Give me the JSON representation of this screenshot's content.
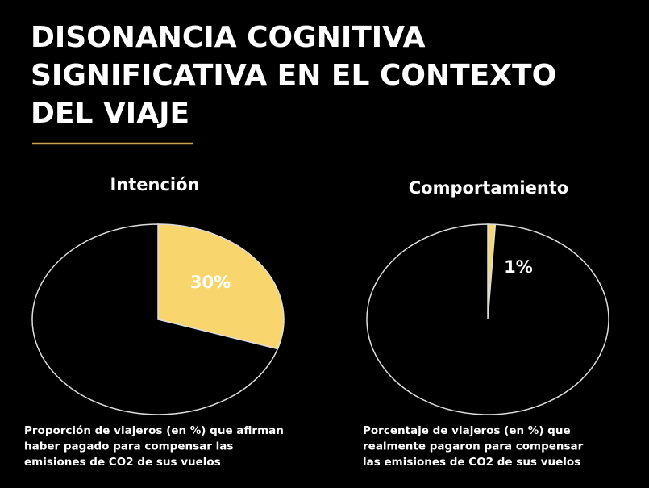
{
  "title_lines": [
    "DISONANCIA COGNITIVA",
    "SIGNIFICATIVA EN EL CONTEXTO",
    "DEL VIAJE"
  ],
  "chart_data": [
    {
      "type": "pie",
      "title": "Intención",
      "categories": [
        null,
        null
      ],
      "values": [
        30,
        70
      ],
      "value_labels": [
        "30%",
        null
      ],
      "colors": [
        "#f9d56e",
        "#000000"
      ],
      "caption_lines": [
        "Proporción de viajeros (en %) que afirman",
        "haber pagado para compensar las",
        "emisiones de CO2 de sus vuelos"
      ]
    },
    {
      "type": "pie",
      "title": "Comportamiento",
      "categories": [
        null,
        null
      ],
      "values": [
        1,
        99
      ],
      "value_labels": [
        "1%",
        null
      ],
      "colors": [
        "#f9d56e",
        "#000000"
      ],
      "caption_lines": [
        "Porcentaje de viajeros (en %) que",
        "realmente pagaron para compensar",
        "las emisiones de CO2 de sus vuelos"
      ]
    }
  ]
}
